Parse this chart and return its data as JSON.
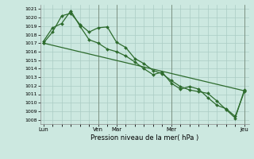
{
  "title": "Pression niveau de la mer( hPa )",
  "bg_color": "#cce8e0",
  "grid_color": "#aaccc4",
  "line_color": "#2d6b2d",
  "marker": "D",
  "markersize": 2.0,
  "linewidth": 0.9,
  "ylim": [
    1007.5,
    1021.5
  ],
  "yticks": [
    1008,
    1009,
    1010,
    1011,
    1012,
    1013,
    1014,
    1015,
    1016,
    1017,
    1018,
    1019,
    1020,
    1021
  ],
  "xtick_labels": [
    "Lun",
    "Ven",
    "Mar",
    "Mer",
    "Jeu"
  ],
  "xtick_positions": [
    0,
    6,
    8,
    14,
    22
  ],
  "vlines": [
    6,
    8,
    14,
    22
  ],
  "series1_x": [
    0,
    1,
    2,
    3,
    4,
    5,
    6,
    7,
    8,
    9,
    10,
    11,
    12,
    13,
    14,
    15,
    16,
    17,
    18,
    19,
    20,
    21,
    22
  ],
  "series1_y": [
    1017.0,
    1018.3,
    1020.2,
    1020.5,
    1019.2,
    1018.3,
    1018.8,
    1018.9,
    1017.1,
    1016.5,
    1015.2,
    1014.6,
    1013.8,
    1013.4,
    1012.6,
    1011.9,
    1011.5,
    1011.3,
    1011.1,
    1010.2,
    1009.2,
    1008.2,
    1011.5
  ],
  "series2_x": [
    0,
    1,
    2,
    3,
    4,
    5,
    6,
    7,
    8,
    9,
    10,
    11,
    12,
    13,
    14,
    15,
    16,
    17,
    18,
    19,
    20,
    21,
    22
  ],
  "series2_y": [
    1017.2,
    1018.8,
    1019.3,
    1020.8,
    1019.0,
    1017.4,
    1017.0,
    1016.3,
    1016.0,
    1015.5,
    1014.8,
    1014.0,
    1013.3,
    1013.6,
    1012.3,
    1011.6,
    1011.9,
    1011.6,
    1010.6,
    1009.7,
    1009.3,
    1008.4,
    1011.3
  ],
  "series3_x": [
    0,
    22
  ],
  "series3_y": [
    1017.0,
    1011.4
  ]
}
